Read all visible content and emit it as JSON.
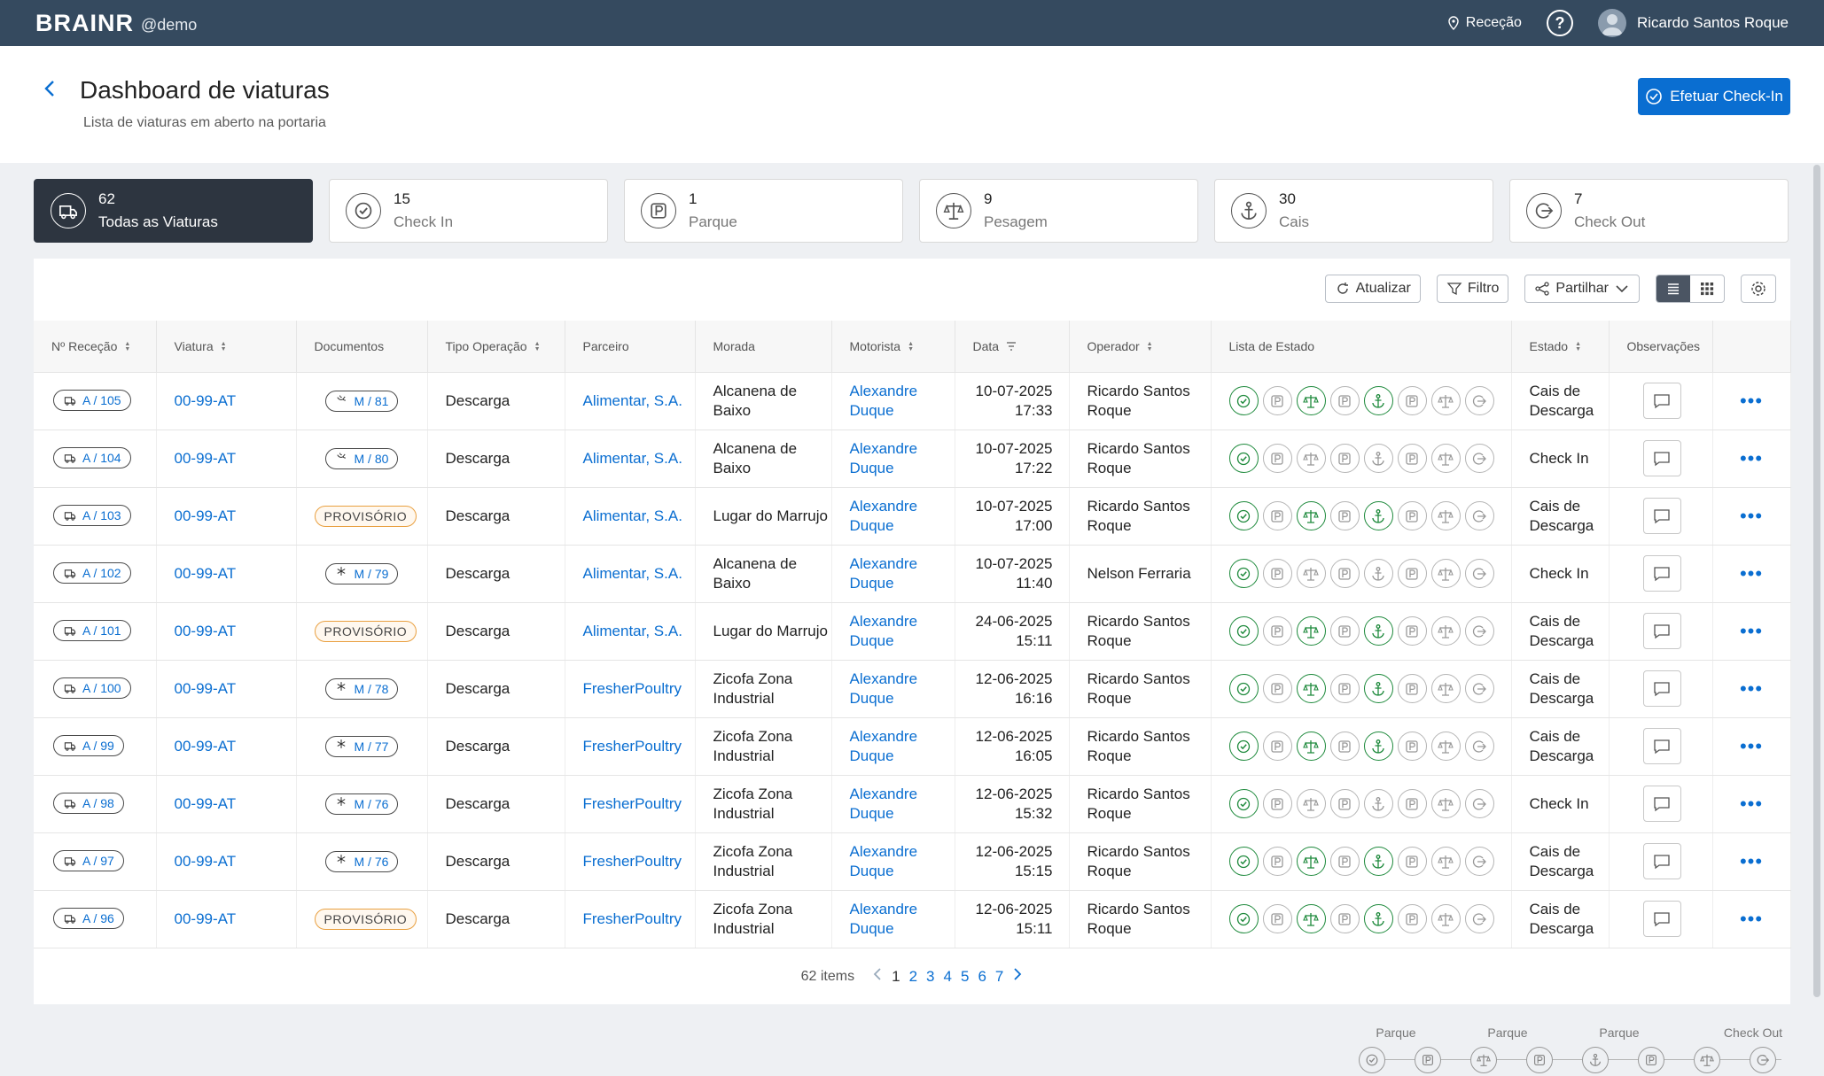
{
  "topbar": {
    "logo": "BRAINR",
    "tenant": "@demo",
    "location": "Receção",
    "help": "?",
    "user": "Ricardo Santos Roque"
  },
  "header": {
    "title": "Dashboard de viaturas",
    "subtitle": "Lista de viaturas em aberto na portaria",
    "checkin_label": "Efetuar Check-In"
  },
  "cards": [
    {
      "count": "62",
      "label": "Todas as Viaturas",
      "icon": "truck-icon"
    },
    {
      "count": "15",
      "label": "Check In",
      "icon": "check-circle-icon"
    },
    {
      "count": "1",
      "label": "Parque",
      "icon": "parking-icon"
    },
    {
      "count": "9",
      "label": "Pesagem",
      "icon": "scale-icon"
    },
    {
      "count": "30",
      "label": "Cais",
      "icon": "anchor-icon"
    },
    {
      "count": "7",
      "label": "Check Out",
      "icon": "exit-icon"
    }
  ],
  "toolbar": {
    "refresh": "Atualizar",
    "filter": "Filtro",
    "share": "Partilhar"
  },
  "columns": [
    "Nº Receção",
    "Viatura",
    "Documentos",
    "Tipo Operação",
    "Parceiro",
    "Morada",
    "Motorista",
    "Data",
    "Operador",
    "Lista de Estado",
    "Estado",
    "Observações"
  ],
  "rows": [
    {
      "rec": "A / 105",
      "viatura": "00-99-AT",
      "doc_type": "badge",
      "doc_icon": "bird",
      "doc": "M / 81",
      "tipo": "Descarga",
      "parceiro": "Alimentar, S.A.",
      "morada": "Alcanena de Baixo",
      "motorista": "Alexandre Duque",
      "date": "10-07-2025",
      "time": "17:33",
      "operador": "Ricardo Santos Roque",
      "status": [
        1,
        0,
        1,
        0,
        1,
        0,
        0,
        0
      ],
      "estado": "Cais de Descarga"
    },
    {
      "rec": "A / 104",
      "viatura": "00-99-AT",
      "doc_type": "badge",
      "doc_icon": "bird",
      "doc": "M / 80",
      "tipo": "Descarga",
      "parceiro": "Alimentar, S.A.",
      "morada": "Alcanena de Baixo",
      "motorista": "Alexandre Duque",
      "date": "10-07-2025",
      "time": "17:22",
      "operador": "Ricardo Santos Roque",
      "status": [
        1,
        0,
        0,
        0,
        0,
        0,
        0,
        0
      ],
      "estado": "Check In"
    },
    {
      "rec": "A / 103",
      "viatura": "00-99-AT",
      "doc_type": "prov",
      "doc_icon": "",
      "doc": "PROVISÓRIO",
      "tipo": "Descarga",
      "parceiro": "Alimentar, S.A.",
      "morada": "Lugar do Marrujo",
      "motorista": "Alexandre Duque",
      "date": "10-07-2025",
      "time": "17:00",
      "operador": "Ricardo Santos Roque",
      "status": [
        1,
        0,
        1,
        0,
        1,
        0,
        0,
        0
      ],
      "estado": "Cais de Descarga"
    },
    {
      "rec": "A / 102",
      "viatura": "00-99-AT",
      "doc_type": "badge",
      "doc_icon": "snow",
      "doc": "M / 79",
      "tipo": "Descarga",
      "parceiro": "Alimentar, S.A.",
      "morada": "Alcanena de Baixo",
      "motorista": "Alexandre Duque",
      "date": "10-07-2025",
      "time": "11:40",
      "operador": "Nelson Ferraria",
      "status": [
        1,
        0,
        0,
        0,
        0,
        0,
        0,
        0
      ],
      "estado": "Check In"
    },
    {
      "rec": "A / 101",
      "viatura": "00-99-AT",
      "doc_type": "prov",
      "doc_icon": "",
      "doc": "PROVISÓRIO",
      "tipo": "Descarga",
      "parceiro": "Alimentar, S.A.",
      "morada": "Lugar do Marrujo",
      "motorista": "Alexandre Duque",
      "date": "24-06-2025",
      "time": "15:11",
      "operador": "Ricardo Santos Roque",
      "status": [
        1,
        0,
        1,
        0,
        1,
        0,
        0,
        0
      ],
      "estado": "Cais de Descarga"
    },
    {
      "rec": "A / 100",
      "viatura": "00-99-AT",
      "doc_type": "badge",
      "doc_icon": "snow",
      "doc": "M / 78",
      "tipo": "Descarga",
      "parceiro": "FresherPoultry",
      "morada": "Zicofa Zona Industrial",
      "motorista": "Alexandre Duque",
      "date": "12-06-2025",
      "time": "16:16",
      "operador": "Ricardo Santos Roque",
      "status": [
        1,
        0,
        1,
        0,
        1,
        0,
        0,
        0
      ],
      "estado": "Cais de Descarga"
    },
    {
      "rec": "A / 99",
      "viatura": "00-99-AT",
      "doc_type": "badge",
      "doc_icon": "snow",
      "doc": "M / 77",
      "tipo": "Descarga",
      "parceiro": "FresherPoultry",
      "morada": "Zicofa Zona Industrial",
      "motorista": "Alexandre Duque",
      "date": "12-06-2025",
      "time": "16:05",
      "operador": "Ricardo Santos Roque",
      "status": [
        1,
        0,
        1,
        0,
        1,
        0,
        0,
        0
      ],
      "estado": "Cais de Descarga"
    },
    {
      "rec": "A / 98",
      "viatura": "00-99-AT",
      "doc_type": "badge",
      "doc_icon": "snow",
      "doc": "M / 76",
      "tipo": "Descarga",
      "parceiro": "FresherPoultry",
      "morada": "Zicofa Zona Industrial",
      "motorista": "Alexandre Duque",
      "date": "12-06-2025",
      "time": "15:32",
      "operador": "Ricardo Santos Roque",
      "status": [
        1,
        0,
        0,
        0,
        0,
        0,
        0,
        0
      ],
      "estado": "Check In"
    },
    {
      "rec": "A / 97",
      "viatura": "00-99-AT",
      "doc_type": "badge",
      "doc_icon": "snow",
      "doc": "M / 76",
      "tipo": "Descarga",
      "parceiro": "FresherPoultry",
      "morada": "Zicofa Zona Industrial",
      "motorista": "Alexandre Duque",
      "date": "12-06-2025",
      "time": "15:15",
      "operador": "Ricardo Santos Roque",
      "status": [
        1,
        0,
        1,
        0,
        1,
        0,
        0,
        0
      ],
      "estado": "Cais de Descarga"
    },
    {
      "rec": "A / 96",
      "viatura": "00-99-AT",
      "doc_type": "prov",
      "doc_icon": "",
      "doc": "PROVISÓRIO",
      "tipo": "Descarga",
      "parceiro": "FresherPoultry",
      "morada": "Zicofa Zona Industrial",
      "motorista": "Alexandre Duque",
      "date": "12-06-2025",
      "time": "15:11",
      "operador": "Ricardo Santos Roque",
      "status": [
        1,
        0,
        1,
        0,
        1,
        0,
        0,
        0
      ],
      "estado": "Cais de Descarga"
    }
  ],
  "status_icons": [
    "check",
    "parking",
    "scale",
    "parking",
    "anchor",
    "parking",
    "scale",
    "exit"
  ],
  "pager": {
    "items": "62 items",
    "pages": [
      "1",
      "2",
      "3",
      "4",
      "5",
      "6",
      "7"
    ],
    "current": "1"
  },
  "legend": {
    "labels": [
      "Parque",
      "Parque",
      "Parque",
      "Check Out"
    ],
    "icons": [
      "check",
      "parking",
      "scale",
      "parking",
      "anchor",
      "parking",
      "scale",
      "exit"
    ]
  },
  "colors": {
    "topbar": "#354a5f",
    "accent": "#0a6ed1",
    "done": "#1e8a3c",
    "pending": "#b5b5b5"
  }
}
